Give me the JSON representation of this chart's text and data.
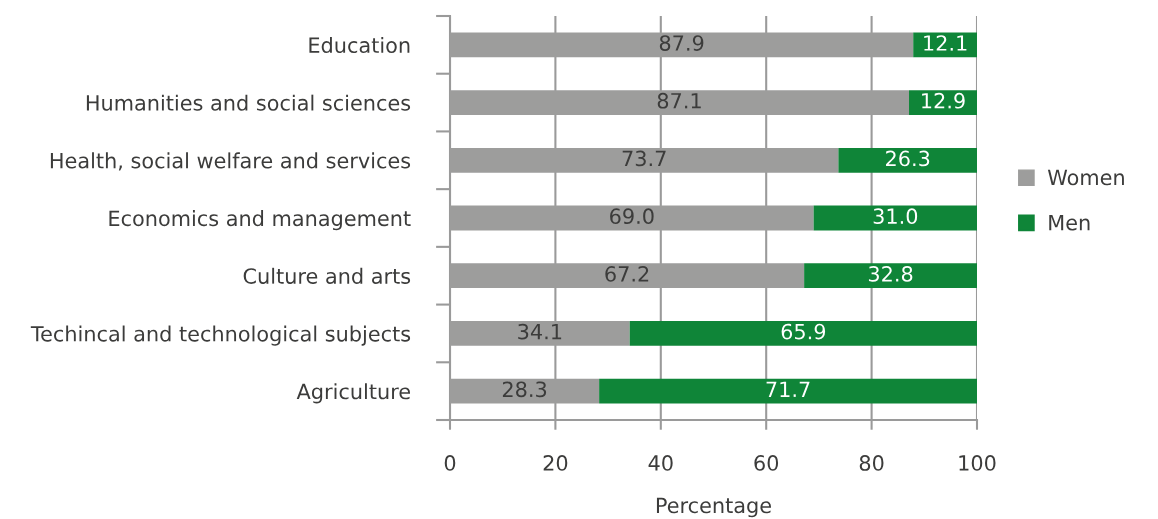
{
  "chart_data": {
    "type": "bar",
    "orientation": "horizontal",
    "stacked": true,
    "categories": [
      "Education",
      "Humanities and social sciences",
      "Health, social welfare and services",
      "Economics and management",
      "Culture and arts",
      "Techincal and technological subjects",
      "Agriculture"
    ],
    "series": [
      {
        "name": "Women",
        "color": "#9d9d9c",
        "values": [
          87.9,
          87.1,
          73.7,
          69.0,
          67.2,
          34.1,
          28.3
        ],
        "value_labels": [
          "87.9",
          "87.1",
          "73.7",
          "69.0",
          "67.2",
          "34.1",
          "28.3"
        ]
      },
      {
        "name": "Men",
        "color": "#0f8538",
        "values": [
          12.1,
          12.9,
          26.3,
          31.0,
          32.8,
          65.9,
          71.7
        ],
        "value_labels": [
          "12.1",
          "12.9",
          "26.3",
          "31.0",
          "32.8",
          "65.9",
          "71.7"
        ]
      }
    ],
    "xlabel": "Percentage",
    "xlim": [
      0,
      100
    ],
    "xticks": [
      0,
      20,
      40,
      60,
      80,
      100
    ],
    "grid": "x",
    "legend": "right"
  }
}
